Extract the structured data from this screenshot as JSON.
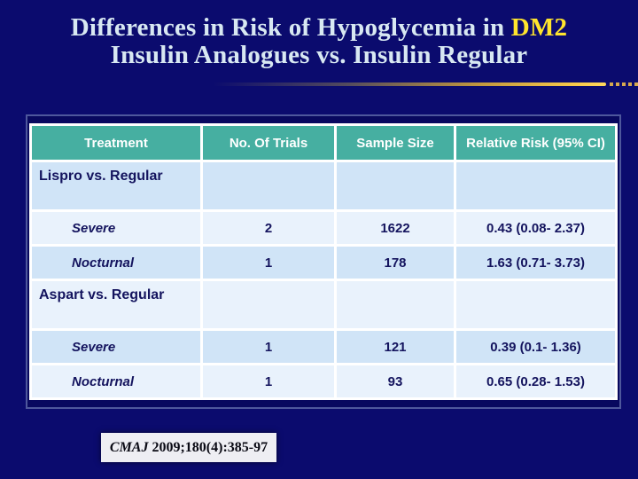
{
  "slide": {
    "title_line1_prefix": "Differences in Risk of Hypoglycemia in ",
    "title_highlight": "DM2",
    "title_line2": "Insulin Analogues vs. Insulin Regular",
    "citation_journal": "CMAJ",
    "citation_rest": " 2009;180(4):385-97"
  },
  "table": {
    "headers": [
      "Treatment",
      "No. Of Trials",
      "Sample Size",
      "Relative Risk (95% CI)"
    ],
    "rows": [
      {
        "type": "group",
        "label": "Lispro vs. Regular",
        "trials": "",
        "sample": "",
        "rr": ""
      },
      {
        "type": "sub",
        "label": "Severe",
        "trials": "2",
        "sample": "1622",
        "rr": "0.43 (0.08- 2.37)"
      },
      {
        "type": "sub",
        "label": "Nocturnal",
        "trials": "1",
        "sample": "178",
        "rr": "1.63 (0.71- 3.73)"
      },
      {
        "type": "group",
        "label": "Aspart vs. Regular",
        "trials": "",
        "sample": "",
        "rr": ""
      },
      {
        "type": "sub",
        "label": "Severe",
        "trials": "1",
        "sample": "121",
        "rr": "0.39 (0.1- 1.36)"
      },
      {
        "type": "sub",
        "label": "Nocturnal",
        "trials": "1",
        "sample": "93",
        "rr": "0.65 (0.28- 1.53)"
      }
    ]
  },
  "colors": {
    "background": "#0b0b6e",
    "title_text": "#d8e8f2",
    "title_highlight": "#ffe52d",
    "header_teal": "#46afa1",
    "row_shade_dark": "#d0e4f7",
    "row_shade_light": "#e9f2fc",
    "body_text_navy": "#14145e",
    "gold_line": "#f7c94a",
    "citation_bg": "#eeeef3"
  },
  "chart_data": {
    "type": "table",
    "title": "Differences in Risk of Hypoglycemia in DM2 Insulin Analogues vs. Insulin Regular",
    "columns": [
      "Treatment",
      "No. Of Trials",
      "Sample Size",
      "Relative Risk (95% CI)"
    ],
    "rows": [
      [
        "Lispro vs. Regular",
        null,
        null,
        null
      ],
      [
        "Severe",
        2,
        1622,
        "0.43 (0.08- 2.37)"
      ],
      [
        "Nocturnal",
        1,
        178,
        "1.63 (0.71- 3.73)"
      ],
      [
        "Aspart vs. Regular",
        null,
        null,
        null
      ],
      [
        "Severe",
        1,
        121,
        "0.39 (0.1- 1.36)"
      ],
      [
        "Nocturnal",
        1,
        93,
        "0.65 (0.28- 1.53)"
      ]
    ],
    "source": "CMAJ 2009;180(4):385-97"
  }
}
